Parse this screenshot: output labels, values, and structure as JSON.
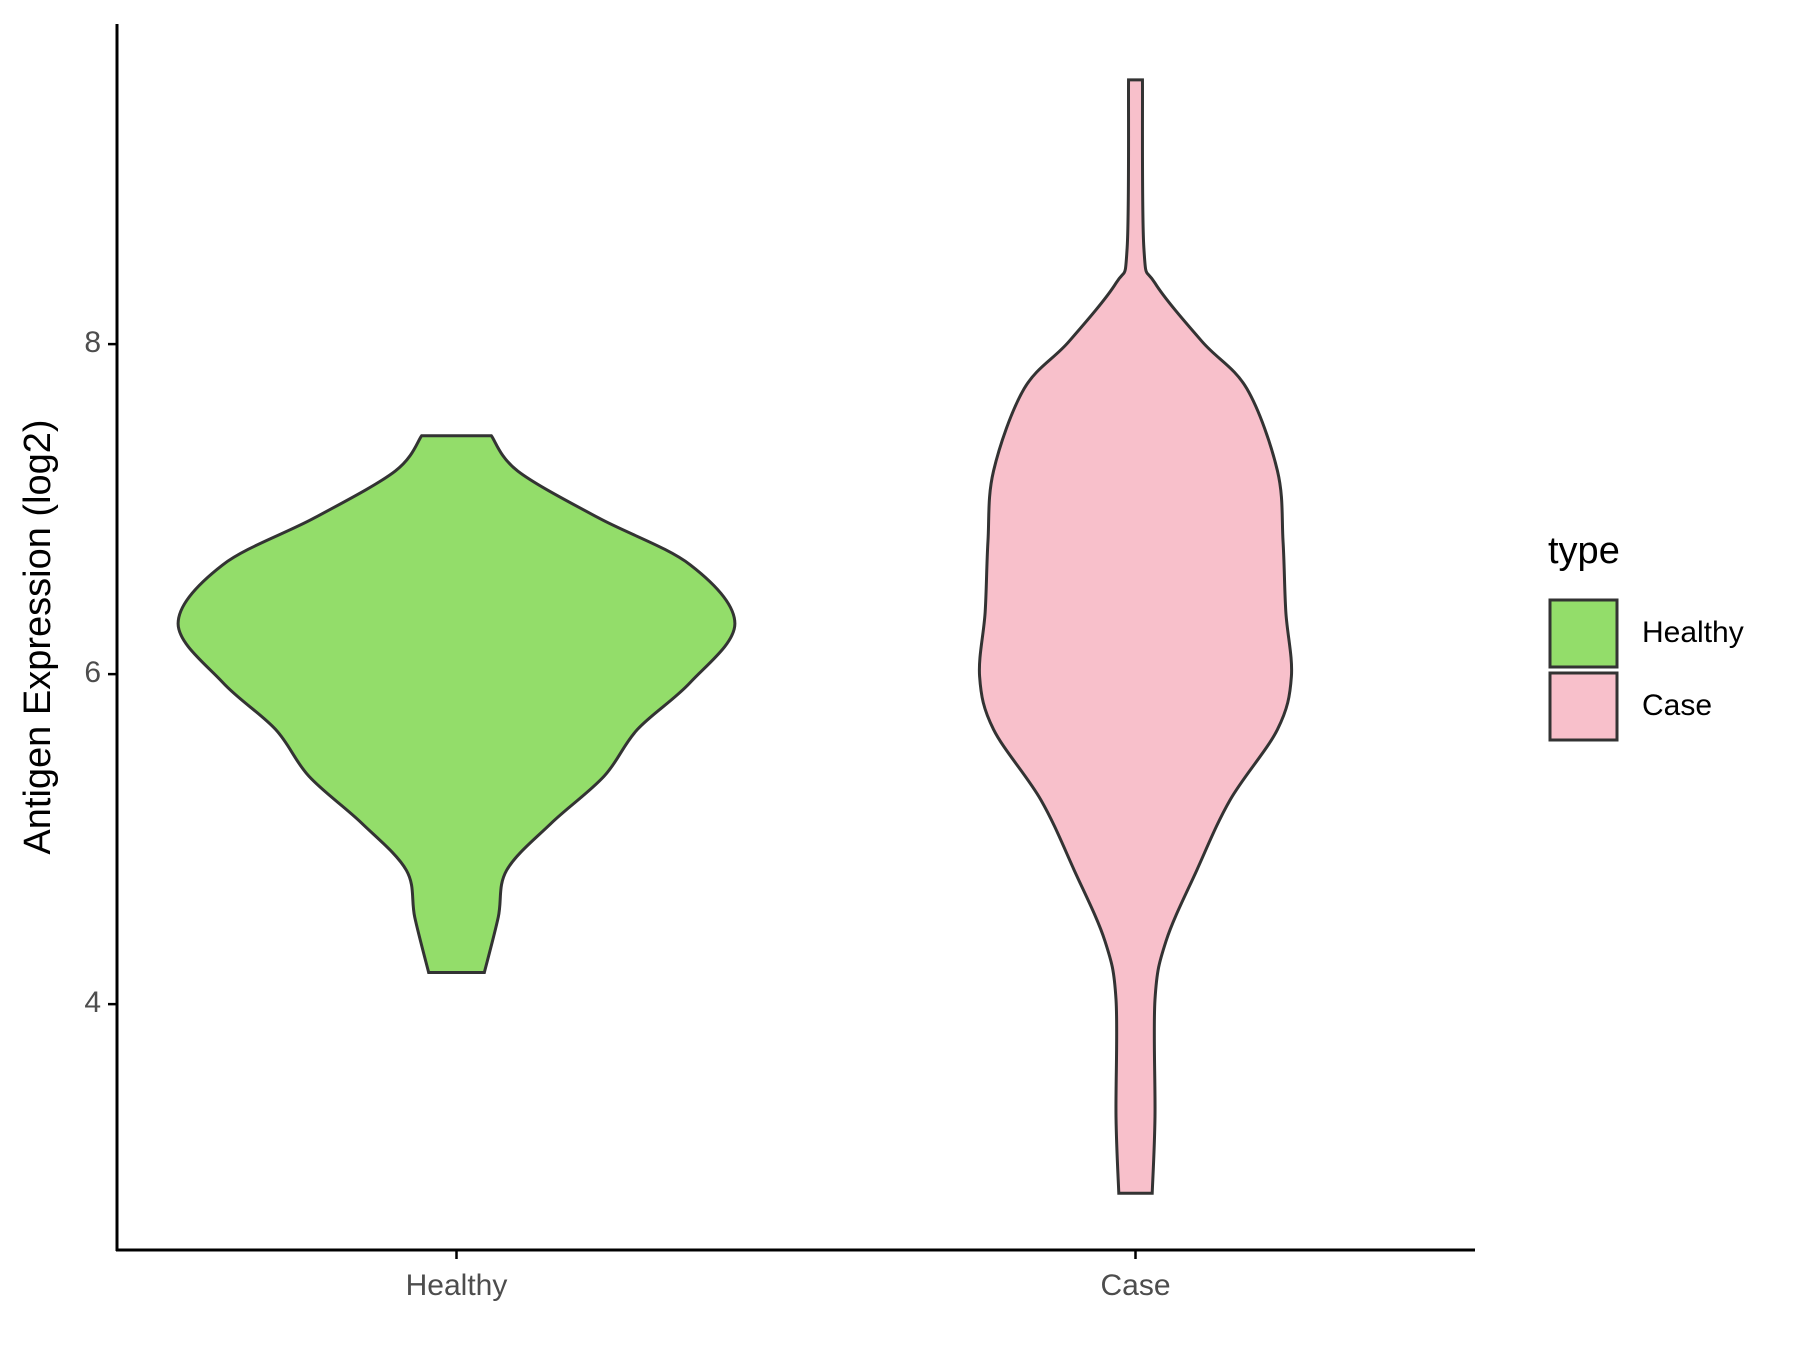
{
  "chart_data": {
    "type": "violin",
    "ylabel": "Antigen Expression (log2)",
    "categories": [
      "Healthy",
      "Case"
    ],
    "legend_title": "type",
    "legend": "right",
    "ylim": [
      2.51,
      9.94
    ],
    "yticks": [
      4,
      6,
      8
    ],
    "series": [
      {
        "name": "Healthy",
        "color": "#93dd6a",
        "y": [
          7.445,
          7.231,
          6.947,
          6.662,
          6.306,
          5.95,
          5.665,
          5.381,
          5.096,
          4.811,
          4.527,
          4.192
        ],
        "density": [
          0.125,
          0.22,
          0.51,
          0.84,
          1,
          0.84,
          0.65,
          0.53,
          0.34,
          0.18,
          0.15,
          0.1
        ]
      },
      {
        "name": "Case",
        "color": "#f8c0cb",
        "y": [
          9.601,
          8.584,
          8.37,
          8.014,
          7.73,
          7.231,
          6.804,
          6.377,
          5.986,
          5.665,
          5.238,
          4.811,
          4.384,
          4.028,
          3.317,
          2.854
        ],
        "density": [
          0.025,
          0.03,
          0.07,
          0.24,
          0.4,
          0.51,
          0.53,
          0.54,
          0.56,
          0.51,
          0.34,
          0.22,
          0.11,
          0.07,
          0.07,
          0.06
        ]
      }
    ]
  }
}
